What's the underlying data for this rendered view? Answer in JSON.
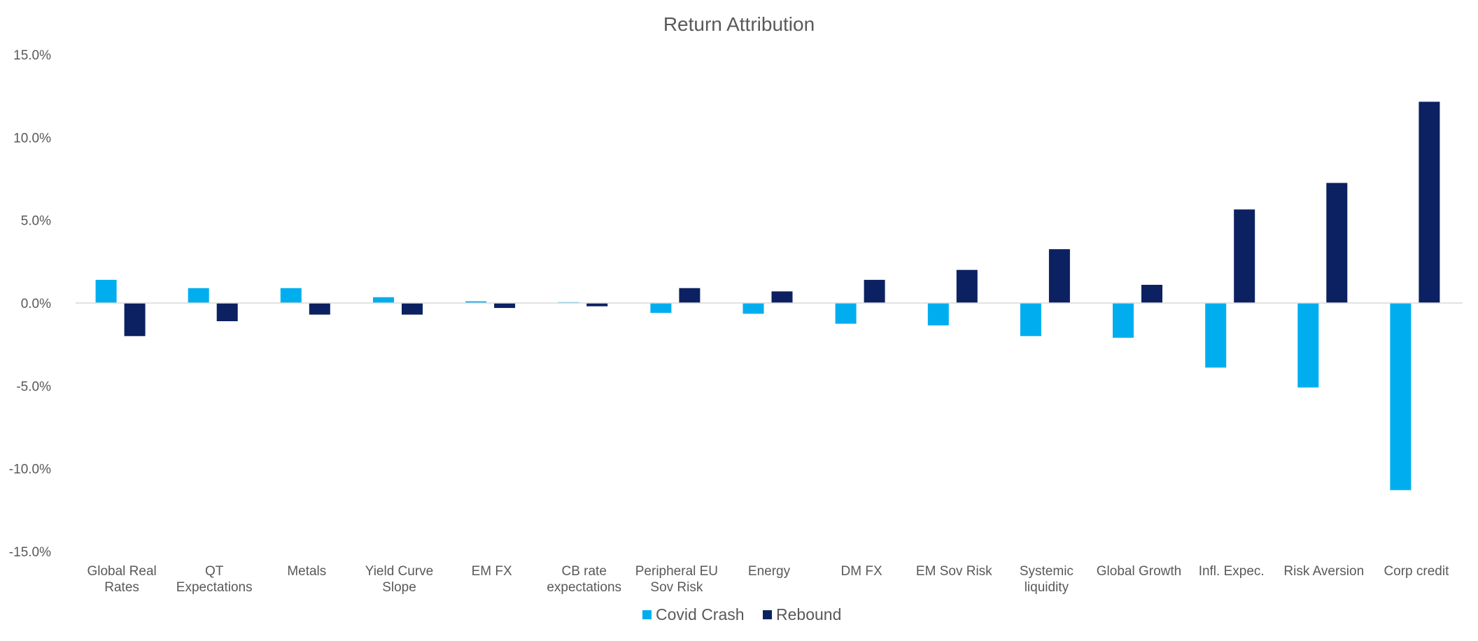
{
  "chart_data": {
    "type": "bar",
    "title": "Return Attribution",
    "xlabel": "",
    "ylabel": "",
    "ylim": [
      -15,
      15
    ],
    "y_ticks": [
      15,
      10,
      5,
      0,
      -5,
      -10,
      -15
    ],
    "y_tick_labels": [
      "15.0%",
      "10.0%",
      "5.0%",
      "0.0%",
      "-5.0%",
      "-10.0%",
      "-15.0%"
    ],
    "gridlines": false,
    "legend_position": "bottom",
    "categories": [
      "Global Real Rates",
      "QT Expectations",
      "Metals",
      "Yield Curve Slope",
      "EM FX",
      "CB rate expectations",
      "Peripheral EU Sov Risk",
      "Energy",
      "DM FX",
      "EM Sov Risk",
      "Systemic liquidity",
      "Global Growth",
      "Infl. Expec.",
      "Risk Aversion",
      "Corp credit"
    ],
    "category_label_lines": [
      [
        "Global Real",
        "Rates"
      ],
      [
        "QT",
        "Expectations"
      ],
      [
        "Metals"
      ],
      [
        "Yield Curve",
        "Slope"
      ],
      [
        "EM FX"
      ],
      [
        "CB rate",
        "expectations"
      ],
      [
        "Peripheral EU",
        "Sov Risk"
      ],
      [
        "Energy"
      ],
      [
        "DM FX"
      ],
      [
        "EM Sov Risk"
      ],
      [
        "Systemic",
        "liquidity"
      ],
      [
        "Global Growth"
      ],
      [
        "Infl. Expec."
      ],
      [
        "Risk Aversion"
      ],
      [
        "Corp credit"
      ]
    ],
    "series": [
      {
        "name": "Covid Crash",
        "color": "#00AEEF",
        "values": [
          1.4,
          0.9,
          0.9,
          0.35,
          0.1,
          0.05,
          -0.6,
          -0.65,
          -1.25,
          -1.35,
          -2.0,
          -2.1,
          -3.9,
          -5.1,
          -11.3
        ]
      },
      {
        "name": "Rebound",
        "color": "#0C2161",
        "values": [
          -2.0,
          -1.1,
          -0.7,
          -0.7,
          -0.3,
          -0.2,
          0.9,
          0.7,
          1.4,
          2.0,
          3.25,
          1.1,
          5.65,
          7.25,
          12.15
        ]
      }
    ],
    "colors": {
      "text": "#595959",
      "axis": "#D9D9D9"
    }
  }
}
